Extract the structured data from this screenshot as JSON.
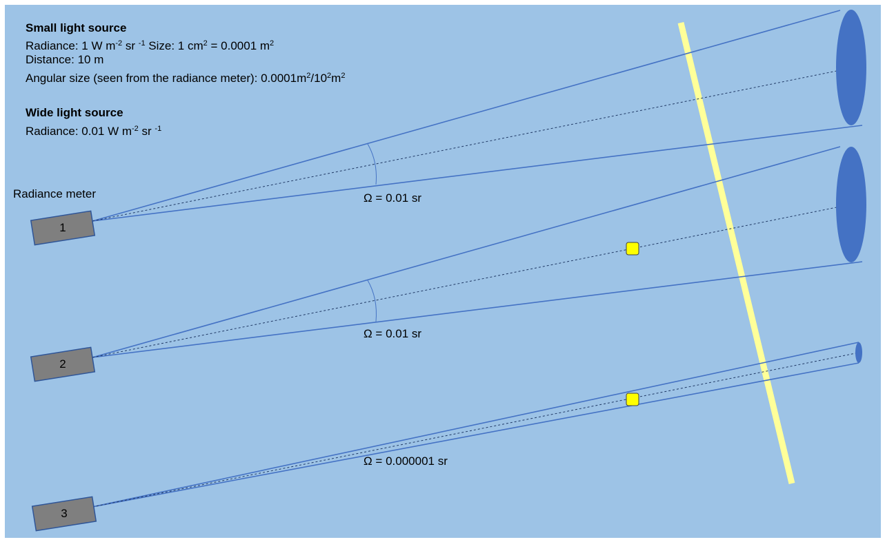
{
  "small_source": {
    "title": "Small light source",
    "radiance": {
      "prefix": "Radiance: 1 W m",
      "exp1": "-2",
      "mid": " sr ",
      "exp2": "-1",
      "suffix": " Size: 1 cm",
      "exp3": "2",
      "tail": " = 0.0001 m",
      "exp4": "2"
    },
    "distance": "Distance: 10 m",
    "angular": {
      "prefix": "Angular size (seen from the radiance meter): 0.0001m",
      "exp1": "2",
      "mid": "/10",
      "exp2": "2",
      "mid2": "m",
      "exp3": "2"
    }
  },
  "wide_source": {
    "title": "Wide light source",
    "radiance": {
      "prefix": "Radiance: 0.01 W m",
      "exp1": "-2",
      "mid": " sr ",
      "exp2": "-1"
    }
  },
  "meter_caption": "Radiance meter",
  "meters": [
    {
      "id": "1",
      "omega": "Ω = 0.01 sr"
    },
    {
      "id": "2",
      "omega": "Ω = 0.01 sr"
    },
    {
      "id": "3",
      "omega": "Ω = 0.000001 sr"
    }
  ],
  "colors": {
    "background": "#9dc3e6",
    "beam_line": "#4472c4",
    "ellipse_fill": "#4472c4",
    "meter_fill": "#7f7f7f",
    "meter_stroke": "#2f5597",
    "source_strip": "#ffff99",
    "small_source": "#ffff00"
  }
}
